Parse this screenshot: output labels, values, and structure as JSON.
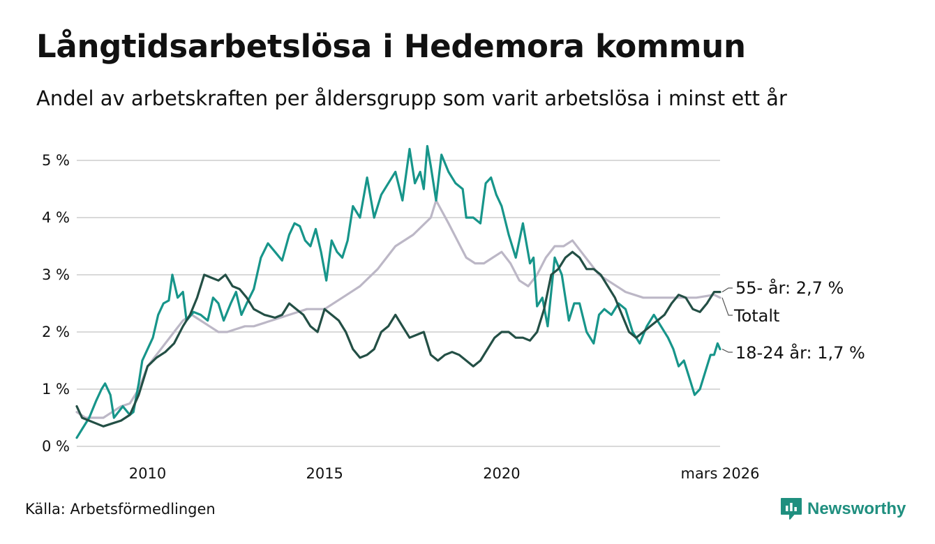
{
  "title": "Långtidsarbetslösa i Hedemora kommun",
  "subtitle": "Andel av arbetskraften per åldersgrupp som varit arbetslösa i minst ett år",
  "source": "Källa: Arbetsförmedlingen",
  "brand": {
    "name": "Newsworthy",
    "icon": "newsworthy-logo-icon"
  },
  "colors": {
    "youth": "#17958a",
    "senior": "#234f45",
    "total": "#bcb7c6",
    "grid": "#d9d9d9",
    "text": "#111111",
    "brand": "#1f8f7f"
  },
  "chart_data": {
    "type": "line",
    "title": "Långtidsarbetslösa i Hedemora kommun",
    "xlabel": "",
    "ylabel": "",
    "x_range": [
      2008.0,
      2026.17
    ],
    "ylim": [
      0,
      5
    ],
    "y_ticks": [
      0,
      1,
      2,
      3,
      4,
      5
    ],
    "y_tick_labels": [
      "0 %",
      "1 %",
      "2 %",
      "3 %",
      "4 %",
      "5 %"
    ],
    "x_ticks": [
      2010,
      2015,
      2020,
      2026.17
    ],
    "x_tick_labels": [
      "2010",
      "2015",
      "2020",
      "mars 2026"
    ],
    "grid": true,
    "legend": "end-of-line labels, right",
    "series": [
      {
        "name": "Totalt",
        "key": "total",
        "end_label": "Totalt",
        "points": [
          [
            2008.0,
            0.6
          ],
          [
            2008.25,
            0.5
          ],
          [
            2008.5,
            0.5
          ],
          [
            2008.75,
            0.5
          ],
          [
            2009.0,
            0.6
          ],
          [
            2009.25,
            0.7
          ],
          [
            2009.5,
            0.75
          ],
          [
            2009.75,
            1.0
          ],
          [
            2010.0,
            1.4
          ],
          [
            2010.25,
            1.6
          ],
          [
            2010.5,
            1.8
          ],
          [
            2010.75,
            2.0
          ],
          [
            2011.0,
            2.2
          ],
          [
            2011.25,
            2.3
          ],
          [
            2011.5,
            2.2
          ],
          [
            2011.75,
            2.1
          ],
          [
            2012.0,
            2.0
          ],
          [
            2012.25,
            2.0
          ],
          [
            2012.5,
            2.05
          ],
          [
            2012.75,
            2.1
          ],
          [
            2013.0,
            2.1
          ],
          [
            2013.5,
            2.2
          ],
          [
            2014.0,
            2.3
          ],
          [
            2014.5,
            2.4
          ],
          [
            2015.0,
            2.4
          ],
          [
            2015.5,
            2.6
          ],
          [
            2016.0,
            2.8
          ],
          [
            2016.5,
            3.1
          ],
          [
            2017.0,
            3.5
          ],
          [
            2017.5,
            3.7
          ],
          [
            2018.0,
            4.0
          ],
          [
            2018.15,
            4.3
          ],
          [
            2018.5,
            3.9
          ],
          [
            2018.75,
            3.6
          ],
          [
            2019.0,
            3.3
          ],
          [
            2019.25,
            3.2
          ],
          [
            2019.5,
            3.2
          ],
          [
            2019.75,
            3.3
          ],
          [
            2020.0,
            3.4
          ],
          [
            2020.25,
            3.2
          ],
          [
            2020.5,
            2.9
          ],
          [
            2020.75,
            2.8
          ],
          [
            2021.0,
            3.0
          ],
          [
            2021.25,
            3.3
          ],
          [
            2021.5,
            3.5
          ],
          [
            2021.75,
            3.5
          ],
          [
            2022.0,
            3.6
          ],
          [
            2022.25,
            3.4
          ],
          [
            2022.5,
            3.2
          ],
          [
            2022.75,
            3.0
          ],
          [
            2023.0,
            2.9
          ],
          [
            2023.5,
            2.7
          ],
          [
            2024.0,
            2.6
          ],
          [
            2024.5,
            2.6
          ],
          [
            2025.0,
            2.6
          ],
          [
            2025.5,
            2.6
          ],
          [
            2026.0,
            2.65
          ],
          [
            2026.17,
            2.6
          ]
        ]
      },
      {
        "name": "18-24 år",
        "key": "youth",
        "end_label": "18-24 år: 1,7 %",
        "last_value": 1.7,
        "points": [
          [
            2008.0,
            0.15
          ],
          [
            2008.15,
            0.3
          ],
          [
            2008.35,
            0.5
          ],
          [
            2008.55,
            0.8
          ],
          [
            2008.7,
            1.0
          ],
          [
            2008.8,
            1.1
          ],
          [
            2008.95,
            0.9
          ],
          [
            2009.05,
            0.5
          ],
          [
            2009.3,
            0.7
          ],
          [
            2009.5,
            0.55
          ],
          [
            2009.6,
            0.6
          ],
          [
            2009.75,
            1.1
          ],
          [
            2009.85,
            1.5
          ],
          [
            2010.0,
            1.7
          ],
          [
            2010.15,
            1.9
          ],
          [
            2010.3,
            2.3
          ],
          [
            2010.45,
            2.5
          ],
          [
            2010.6,
            2.55
          ],
          [
            2010.7,
            3.0
          ],
          [
            2010.85,
            2.6
          ],
          [
            2011.0,
            2.7
          ],
          [
            2011.1,
            2.2
          ],
          [
            2011.3,
            2.35
          ],
          [
            2011.5,
            2.3
          ],
          [
            2011.7,
            2.2
          ],
          [
            2011.85,
            2.6
          ],
          [
            2012.0,
            2.5
          ],
          [
            2012.15,
            2.2
          ],
          [
            2012.35,
            2.5
          ],
          [
            2012.5,
            2.7
          ],
          [
            2012.65,
            2.3
          ],
          [
            2012.8,
            2.5
          ],
          [
            2013.0,
            2.75
          ],
          [
            2013.2,
            3.3
          ],
          [
            2013.4,
            3.55
          ],
          [
            2013.6,
            3.4
          ],
          [
            2013.8,
            3.25
          ],
          [
            2014.0,
            3.7
          ],
          [
            2014.15,
            3.9
          ],
          [
            2014.3,
            3.85
          ],
          [
            2014.45,
            3.6
          ],
          [
            2014.6,
            3.5
          ],
          [
            2014.75,
            3.8
          ],
          [
            2014.9,
            3.4
          ],
          [
            2015.05,
            2.9
          ],
          [
            2015.2,
            3.6
          ],
          [
            2015.35,
            3.4
          ],
          [
            2015.5,
            3.3
          ],
          [
            2015.65,
            3.6
          ],
          [
            2015.8,
            4.2
          ],
          [
            2016.0,
            4.0
          ],
          [
            2016.2,
            4.7
          ],
          [
            2016.4,
            4.0
          ],
          [
            2016.6,
            4.4
          ],
          [
            2016.8,
            4.6
          ],
          [
            2017.0,
            4.8
          ],
          [
            2017.2,
            4.3
          ],
          [
            2017.4,
            5.2
          ],
          [
            2017.55,
            4.6
          ],
          [
            2017.7,
            4.8
          ],
          [
            2017.8,
            4.5
          ],
          [
            2017.9,
            5.25
          ],
          [
            2018.0,
            4.9
          ],
          [
            2018.15,
            4.3
          ],
          [
            2018.3,
            5.1
          ],
          [
            2018.5,
            4.8
          ],
          [
            2018.7,
            4.6
          ],
          [
            2018.9,
            4.5
          ],
          [
            2019.0,
            4.0
          ],
          [
            2019.2,
            4.0
          ],
          [
            2019.4,
            3.9
          ],
          [
            2019.55,
            4.6
          ],
          [
            2019.7,
            4.7
          ],
          [
            2019.85,
            4.4
          ],
          [
            2020.0,
            4.2
          ],
          [
            2020.2,
            3.7
          ],
          [
            2020.4,
            3.3
          ],
          [
            2020.6,
            3.9
          ],
          [
            2020.8,
            3.2
          ],
          [
            2020.9,
            3.3
          ],
          [
            2021.0,
            2.45
          ],
          [
            2021.15,
            2.6
          ],
          [
            2021.3,
            2.1
          ],
          [
            2021.5,
            3.3
          ],
          [
            2021.7,
            3.0
          ],
          [
            2021.9,
            2.2
          ],
          [
            2022.05,
            2.5
          ],
          [
            2022.2,
            2.5
          ],
          [
            2022.4,
            2.0
          ],
          [
            2022.6,
            1.8
          ],
          [
            2022.75,
            2.3
          ],
          [
            2022.9,
            2.4
          ],
          [
            2023.1,
            2.3
          ],
          [
            2023.3,
            2.5
          ],
          [
            2023.5,
            2.4
          ],
          [
            2023.7,
            2.0
          ],
          [
            2023.9,
            1.8
          ],
          [
            2024.1,
            2.1
          ],
          [
            2024.3,
            2.3
          ],
          [
            2024.5,
            2.1
          ],
          [
            2024.7,
            1.9
          ],
          [
            2024.85,
            1.7
          ],
          [
            2025.0,
            1.4
          ],
          [
            2025.15,
            1.5
          ],
          [
            2025.3,
            1.2
          ],
          [
            2025.45,
            0.9
          ],
          [
            2025.6,
            1.0
          ],
          [
            2025.75,
            1.3
          ],
          [
            2025.9,
            1.6
          ],
          [
            2026.0,
            1.6
          ],
          [
            2026.1,
            1.8
          ],
          [
            2026.17,
            1.7
          ]
        ]
      },
      {
        "name": "55- år",
        "key": "senior",
        "end_label": "55- år: 2,7 %",
        "last_value": 2.7,
        "points": [
          [
            2008.0,
            0.7
          ],
          [
            2008.15,
            0.5
          ],
          [
            2008.35,
            0.45
          ],
          [
            2008.55,
            0.4
          ],
          [
            2008.75,
            0.35
          ],
          [
            2009.0,
            0.4
          ],
          [
            2009.25,
            0.45
          ],
          [
            2009.5,
            0.55
          ],
          [
            2009.75,
            0.9
          ],
          [
            2010.0,
            1.4
          ],
          [
            2010.25,
            1.55
          ],
          [
            2010.5,
            1.65
          ],
          [
            2010.75,
            1.8
          ],
          [
            2011.0,
            2.1
          ],
          [
            2011.2,
            2.3
          ],
          [
            2011.4,
            2.6
          ],
          [
            2011.6,
            3.0
          ],
          [
            2011.8,
            2.95
          ],
          [
            2012.0,
            2.9
          ],
          [
            2012.2,
            3.0
          ],
          [
            2012.4,
            2.8
          ],
          [
            2012.6,
            2.75
          ],
          [
            2012.8,
            2.6
          ],
          [
            2013.0,
            2.4
          ],
          [
            2013.3,
            2.3
          ],
          [
            2013.6,
            2.25
          ],
          [
            2013.8,
            2.3
          ],
          [
            2014.0,
            2.5
          ],
          [
            2014.2,
            2.4
          ],
          [
            2014.4,
            2.3
          ],
          [
            2014.6,
            2.1
          ],
          [
            2014.8,
            2.0
          ],
          [
            2015.0,
            2.4
          ],
          [
            2015.2,
            2.3
          ],
          [
            2015.4,
            2.2
          ],
          [
            2015.6,
            2.0
          ],
          [
            2015.8,
            1.7
          ],
          [
            2016.0,
            1.55
          ],
          [
            2016.2,
            1.6
          ],
          [
            2016.4,
            1.7
          ],
          [
            2016.6,
            2.0
          ],
          [
            2016.8,
            2.1
          ],
          [
            2017.0,
            2.3
          ],
          [
            2017.2,
            2.1
          ],
          [
            2017.4,
            1.9
          ],
          [
            2017.6,
            1.95
          ],
          [
            2017.8,
            2.0
          ],
          [
            2018.0,
            1.6
          ],
          [
            2018.2,
            1.5
          ],
          [
            2018.4,
            1.6
          ],
          [
            2018.6,
            1.65
          ],
          [
            2018.8,
            1.6
          ],
          [
            2019.0,
            1.5
          ],
          [
            2019.2,
            1.4
          ],
          [
            2019.4,
            1.5
          ],
          [
            2019.6,
            1.7
          ],
          [
            2019.8,
            1.9
          ],
          [
            2020.0,
            2.0
          ],
          [
            2020.2,
            2.0
          ],
          [
            2020.4,
            1.9
          ],
          [
            2020.6,
            1.9
          ],
          [
            2020.8,
            1.85
          ],
          [
            2021.0,
            2.0
          ],
          [
            2021.2,
            2.4
          ],
          [
            2021.4,
            3.0
          ],
          [
            2021.6,
            3.1
          ],
          [
            2021.8,
            3.3
          ],
          [
            2022.0,
            3.4
          ],
          [
            2022.2,
            3.3
          ],
          [
            2022.4,
            3.1
          ],
          [
            2022.6,
            3.1
          ],
          [
            2022.8,
            3.0
          ],
          [
            2023.0,
            2.8
          ],
          [
            2023.2,
            2.6
          ],
          [
            2023.4,
            2.3
          ],
          [
            2023.6,
            2.0
          ],
          [
            2023.8,
            1.9
          ],
          [
            2024.0,
            2.0
          ],
          [
            2024.2,
            2.1
          ],
          [
            2024.4,
            2.2
          ],
          [
            2024.6,
            2.3
          ],
          [
            2024.8,
            2.5
          ],
          [
            2025.0,
            2.65
          ],
          [
            2025.2,
            2.6
          ],
          [
            2025.4,
            2.4
          ],
          [
            2025.6,
            2.35
          ],
          [
            2025.8,
            2.5
          ],
          [
            2026.0,
            2.7
          ],
          [
            2026.17,
            2.7
          ]
        ]
      }
    ]
  }
}
